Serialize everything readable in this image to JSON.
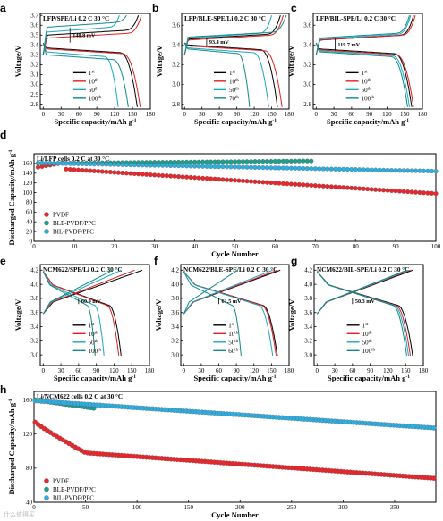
{
  "watermark": "什么值得买",
  "chart_data": [
    {
      "panel": "a",
      "type": "line",
      "title": "LFP/SPE/Li   0.2 C 30 °C",
      "xlabel": "Specific capacity/mAh g⁻¹",
      "ylabel": "Voltage/V",
      "xlim": [
        -5,
        180
      ],
      "ylim": [
        2.75,
        3.72
      ],
      "xticks": [
        0,
        30,
        60,
        90,
        120,
        150,
        180
      ],
      "yticks": [
        2.8,
        2.9,
        3.0,
        3.1,
        3.2,
        3.3,
        3.4,
        3.5,
        3.6,
        3.7
      ],
      "annotation": "148.8 mV",
      "overpotential": {
        "x": 45,
        "y1": 3.573,
        "y2": 3.424
      },
      "legend_loc": "lower-center",
      "series": [
        {
          "name": "1st",
          "color": "#000000",
          "charge_end": 160,
          "charge_plateau": 3.5,
          "discharge_end": 158,
          "discharge_plateau": 3.37
        },
        {
          "name": "10th",
          "color": "#e02020",
          "charge_end": 165,
          "charge_plateau": 3.47,
          "discharge_end": 163,
          "discharge_plateau": 3.36
        },
        {
          "name": "50th",
          "color": "#1ba6c2",
          "charge_end": 128,
          "charge_plateau": 3.53,
          "discharge_end": 126,
          "discharge_plateau": 3.33
        },
        {
          "name": "100th",
          "color": "#108a8a",
          "charge_end": 140,
          "charge_plateau": 3.58,
          "discharge_end": 143,
          "discharge_plateau": 3.3
        }
      ]
    },
    {
      "panel": "b",
      "type": "line",
      "title": "LFP/BLE-SPE/Li   0.2 C 30 °C",
      "xlabel": "Specific capacity/mAh g⁻¹",
      "ylabel": "Voltage/V",
      "xlim": [
        -5,
        180
      ],
      "ylim": [
        2.75,
        3.72
      ],
      "xticks": [
        0,
        30,
        60,
        90,
        120,
        150,
        180
      ],
      "yticks": [
        2.8,
        3.0,
        3.2,
        3.4,
        3.6
      ],
      "annotation": "93.4 mV",
      "overpotential": {
        "x": 38,
        "y1": 3.478,
        "y2": 3.385
      },
      "legend_loc": "lower-center",
      "series": [
        {
          "name": "1st",
          "color": "#000000",
          "charge_end": 165,
          "charge_plateau": 3.46,
          "discharge_end": 160,
          "discharge_plateau": 3.4
        },
        {
          "name": "10th",
          "color": "#e02020",
          "charge_end": 170,
          "charge_plateau": 3.45,
          "discharge_end": 168,
          "discharge_plateau": 3.39
        },
        {
          "name": "50th",
          "color": "#1ba6c2",
          "charge_end": 150,
          "charge_plateau": 3.47,
          "discharge_end": 145,
          "discharge_plateau": 3.37
        },
        {
          "name": "70th",
          "color": "#108a8a",
          "charge_end": 175,
          "charge_plateau": 3.48,
          "discharge_end": 112,
          "discharge_plateau": 3.36
        }
      ]
    },
    {
      "panel": "c",
      "type": "line",
      "title": "LFP/BIL-SPE/Li   0.2 C 30 °C",
      "xlabel": "Specific capacity/mAh g⁻¹",
      "ylabel": "Voltage/V",
      "xlim": [
        -5,
        180
      ],
      "ylim": [
        2.75,
        3.72
      ],
      "xticks": [
        0,
        30,
        60,
        90,
        120,
        150,
        180
      ],
      "yticks": [
        2.8,
        3.0,
        3.2,
        3.4,
        3.6
      ],
      "annotation": "119.7 mV",
      "overpotential": {
        "x": 32,
        "y1": 3.463,
        "y2": 3.343
      },
      "legend_loc": "lower-center",
      "series": [
        {
          "name": "1st",
          "color": "#000000",
          "charge_end": 165,
          "charge_plateau": 3.45,
          "discharge_end": 162,
          "discharge_plateau": 3.36
        },
        {
          "name": "10th",
          "color": "#e02020",
          "charge_end": 168,
          "charge_plateau": 3.45,
          "discharge_end": 165,
          "discharge_plateau": 3.35
        },
        {
          "name": "50th",
          "color": "#1ba6c2",
          "charge_end": 160,
          "charge_plateau": 3.46,
          "discharge_end": 158,
          "discharge_plateau": 3.34
        },
        {
          "name": "100th",
          "color": "#108a8a",
          "charge_end": 158,
          "charge_plateau": 3.47,
          "discharge_end": 155,
          "discharge_plateau": 3.33
        }
      ]
    },
    {
      "panel": "d",
      "type": "scatter",
      "title": "Li/LFP cells 0.2 C at 30 °C",
      "xlabel": "Cycle Number",
      "ylabel": "Discharged Capacity/mAh g⁻¹",
      "xlim": [
        0,
        100
      ],
      "ylim": [
        0,
        180
      ],
      "xticks": [
        0,
        10,
        20,
        30,
        40,
        50,
        60,
        70,
        80,
        90,
        100
      ],
      "yticks": [
        0,
        20,
        40,
        60,
        80,
        100,
        120,
        140,
        160
      ],
      "legend_loc": "lower-left",
      "series": [
        {
          "name": "PVDF",
          "color": "#e8262b",
          "start_cycle": 1,
          "end_cycle": 100,
          "values_start": 152,
          "values_end": 98
        },
        {
          "name": "BLE-PVDF/PPC",
          "color": "#1f9e8c",
          "start_cycle": 1,
          "end_cycle": 69,
          "values_start": 160,
          "values_end": 165
        },
        {
          "name": "BIL-PVDF/PPC",
          "color": "#2eaee0",
          "start_cycle": 1,
          "end_cycle": 100,
          "values_start": 161,
          "values_end": 144
        }
      ]
    },
    {
      "panel": "e",
      "type": "line",
      "title": "NCM622/SPE/Li   0.2 C 30 °C",
      "xlabel": "Specific capacity/mAh g⁻¹",
      "ylabel": "Voltage/V",
      "xlim": [
        -5,
        180
      ],
      "ylim": [
        2.85,
        4.28
      ],
      "xticks": [
        0,
        30,
        60,
        90,
        120,
        150,
        180
      ],
      "yticks": [
        3.0,
        3.2,
        3.4,
        3.6,
        3.8,
        4.0,
        4.2
      ],
      "annotation": "60.9 mV",
      "legend_loc": "lower-center",
      "series": [
        {
          "name": "1st",
          "color": "#000000",
          "charge_end": 168,
          "discharge_end": 132
        },
        {
          "name": "10th",
          "color": "#e02020",
          "charge_end": 155,
          "discharge_end": 128
        },
        {
          "name": "50th",
          "color": "#1ba6c2",
          "charge_end": 132,
          "discharge_end": 103
        },
        {
          "name": "100th",
          "color": "#108a8a",
          "charge_end": 118,
          "discharge_end": 88
        }
      ]
    },
    {
      "panel": "f",
      "type": "line",
      "title": "NCM622/BLE-SPE/Li   0.2 C 30 °C",
      "xlabel": "Specific capacity/mAh g⁻¹",
      "ylabel": "Voltage/V",
      "xlim": [
        -5,
        180
      ],
      "ylim": [
        2.85,
        4.28
      ],
      "xticks": [
        0,
        30,
        60,
        90,
        120,
        150,
        180
      ],
      "yticks": [
        3.0,
        3.2,
        3.4,
        3.6,
        3.8,
        4.0,
        4.2
      ],
      "annotation": "61.5 mV",
      "legend_loc": "lower-center",
      "series": [
        {
          "name": "1st",
          "color": "#000000",
          "charge_end": 165,
          "discharge_end": 160
        },
        {
          "name": "10th",
          "color": "#e02020",
          "charge_end": 160,
          "discharge_end": 158
        },
        {
          "name": "50th",
          "color": "#1ba6c2",
          "charge_end": 152,
          "discharge_end": 152
        },
        {
          "name": "60th",
          "color": "#108a8a",
          "charge_end": 92,
          "discharge_end": 98
        }
      ]
    },
    {
      "panel": "g",
      "type": "line",
      "title": "NCM622/BIL-SPE/Li   0.2 C 30 °C",
      "xlabel": "Specific capacity/mAh g⁻¹",
      "ylabel": "Voltage/V",
      "xlim": [
        -5,
        180
      ],
      "ylim": [
        2.85,
        4.28
      ],
      "xticks": [
        0,
        30,
        60,
        90,
        120,
        150,
        180
      ],
      "yticks": [
        3.0,
        3.2,
        3.4,
        3.6,
        3.8,
        4.0,
        4.2
      ],
      "annotation": "50.3 mV",
      "legend_loc": "lower-center",
      "series": [
        {
          "name": "1st",
          "color": "#000000",
          "charge_end": 162,
          "discharge_end": 162
        },
        {
          "name": "10th",
          "color": "#e02020",
          "charge_end": 158,
          "discharge_end": 158
        },
        {
          "name": "50th",
          "color": "#1ba6c2",
          "charge_end": 155,
          "discharge_end": 155
        },
        {
          "name": "100th",
          "color": "#108a8a",
          "charge_end": 152,
          "discharge_end": 152
        }
      ]
    },
    {
      "panel": "h",
      "type": "scatter",
      "title": "Li/NCM622 cells 0.2 C at 30 °C",
      "xlabel": "Cycle Number",
      "ylabel": "Discharged Capacity/mAh g⁻¹",
      "xlim": [
        0,
        390
      ],
      "ylim": [
        40,
        170
      ],
      "xticks": [
        0,
        50,
        100,
        150,
        200,
        250,
        300,
        350
      ],
      "yticks": [
        40,
        80,
        120,
        160
      ],
      "legend_loc": "lower-left",
      "series": [
        {
          "name": "PVDF",
          "color": "#e8262b",
          "start_cycle": 1,
          "end_cycle": 390,
          "values_start": 135,
          "values_end": 68
        },
        {
          "name": "BLE-PVDF/PPC",
          "color": "#1f9e8c",
          "start_cycle": 1,
          "end_cycle": 60,
          "values_start": 160,
          "values_end": 150
        },
        {
          "name": "BIL-PVDF/PPC",
          "color": "#2eaee0",
          "start_cycle": 1,
          "end_cycle": 390,
          "values_start": 159,
          "values_end": 127
        }
      ]
    }
  ]
}
